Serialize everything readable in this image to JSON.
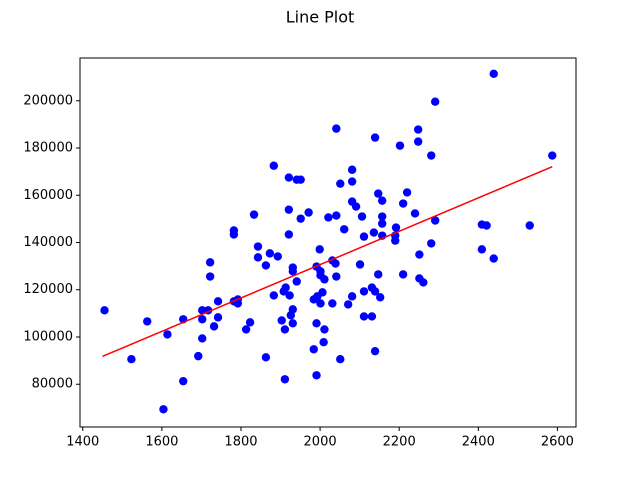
{
  "chart_data": {
    "type": "scatter",
    "title": "Line Plot",
    "xlim": [
      1393,
      2647
    ],
    "ylim": [
      61900,
      218100
    ],
    "xticks": [
      1400,
      1600,
      1800,
      2000,
      2200,
      2400,
      2600
    ],
    "yticks": [
      80000,
      100000,
      120000,
      140000,
      160000,
      180000,
      200000
    ],
    "grid": false,
    "series": [
      {
        "type": "scatter",
        "color": "#0000ff",
        "x": [
          1455,
          1523,
          1563,
          1604,
          1614,
          1654,
          1654,
          1692,
          1702,
          1702,
          1702,
          1717,
          1722,
          1722,
          1732,
          1742,
          1742,
          1782,
          1782,
          1782,
          1792,
          1792,
          1813,
          1823,
          1833,
          1843,
          1843,
          1863,
          1863,
          1873,
          1883,
          1883,
          1893,
          1903,
          1908,
          1911,
          1911,
          1913,
          1921,
          1921,
          1921,
          1923,
          1926,
          1931,
          1931,
          1931,
          1931,
          1941,
          1941,
          1951,
          1951,
          1971,
          1984,
          1984,
          1991,
          1991,
          1991,
          1993,
          1999,
          2001,
          2001,
          2001,
          2006,
          2009,
          2011,
          2011,
          2021,
          2031,
          2031,
          2039,
          2041,
          2041,
          2041,
          2051,
          2051,
          2061,
          2071,
          2081,
          2081,
          2081,
          2081,
          2091,
          2101,
          2106,
          2111,
          2111,
          2111,
          2131,
          2131,
          2136,
          2139,
          2139,
          2139,
          2147,
          2147,
          2152,
          2157,
          2157,
          2157,
          2157,
          2190,
          2190,
          2192,
          2202,
          2210,
          2210,
          2220,
          2240,
          2248,
          2248,
          2251,
          2251,
          2261,
          2281,
          2281,
          2291,
          2291,
          2409,
          2409,
          2421,
          2439,
          2439,
          2530,
          2587
        ],
        "values": [
          111300,
          90600,
          106600,
          69400,
          101100,
          81300,
          107500,
          91900,
          99400,
          107500,
          111300,
          111300,
          131600,
          125600,
          104500,
          115100,
          108300,
          145100,
          143400,
          115100,
          115900,
          114200,
          103200,
          106200,
          151800,
          133700,
          138300,
          130300,
          91400,
          135400,
          172500,
          117600,
          134100,
          107000,
          119300,
          82100,
          103200,
          120900,
          167500,
          153900,
          143400,
          117600,
          109200,
          129400,
          127800,
          111700,
          105800,
          123500,
          166600,
          166600,
          150100,
          152700,
          94800,
          115900,
          83800,
          105800,
          129800,
          117200,
          137100,
          127800,
          126100,
          114200,
          118900,
          97800,
          103200,
          124400,
          150600,
          114200,
          132400,
          131100,
          125600,
          151400,
          188200,
          90600,
          164900,
          145600,
          113800,
          165800,
          170800,
          117200,
          157300,
          155200,
          130700,
          151000,
          142500,
          119300,
          108700,
          108700,
          120900,
          144200,
          119300,
          184400,
          94000,
          126500,
          160700,
          116800,
          157700,
          151000,
          148000,
          142900,
          140800,
          142900,
          146300,
          181000,
          156500,
          126500,
          161200,
          152300,
          182700,
          187800,
          134900,
          124800,
          123100,
          176800,
          139600,
          199600,
          149300,
          137100,
          147600,
          147200,
          211400,
          133200,
          147200,
          176800
        ]
      },
      {
        "type": "line",
        "color": "#ff0000",
        "x": [
          1450,
          2587
        ],
        "values": [
          91800,
          172100
        ]
      }
    ]
  }
}
